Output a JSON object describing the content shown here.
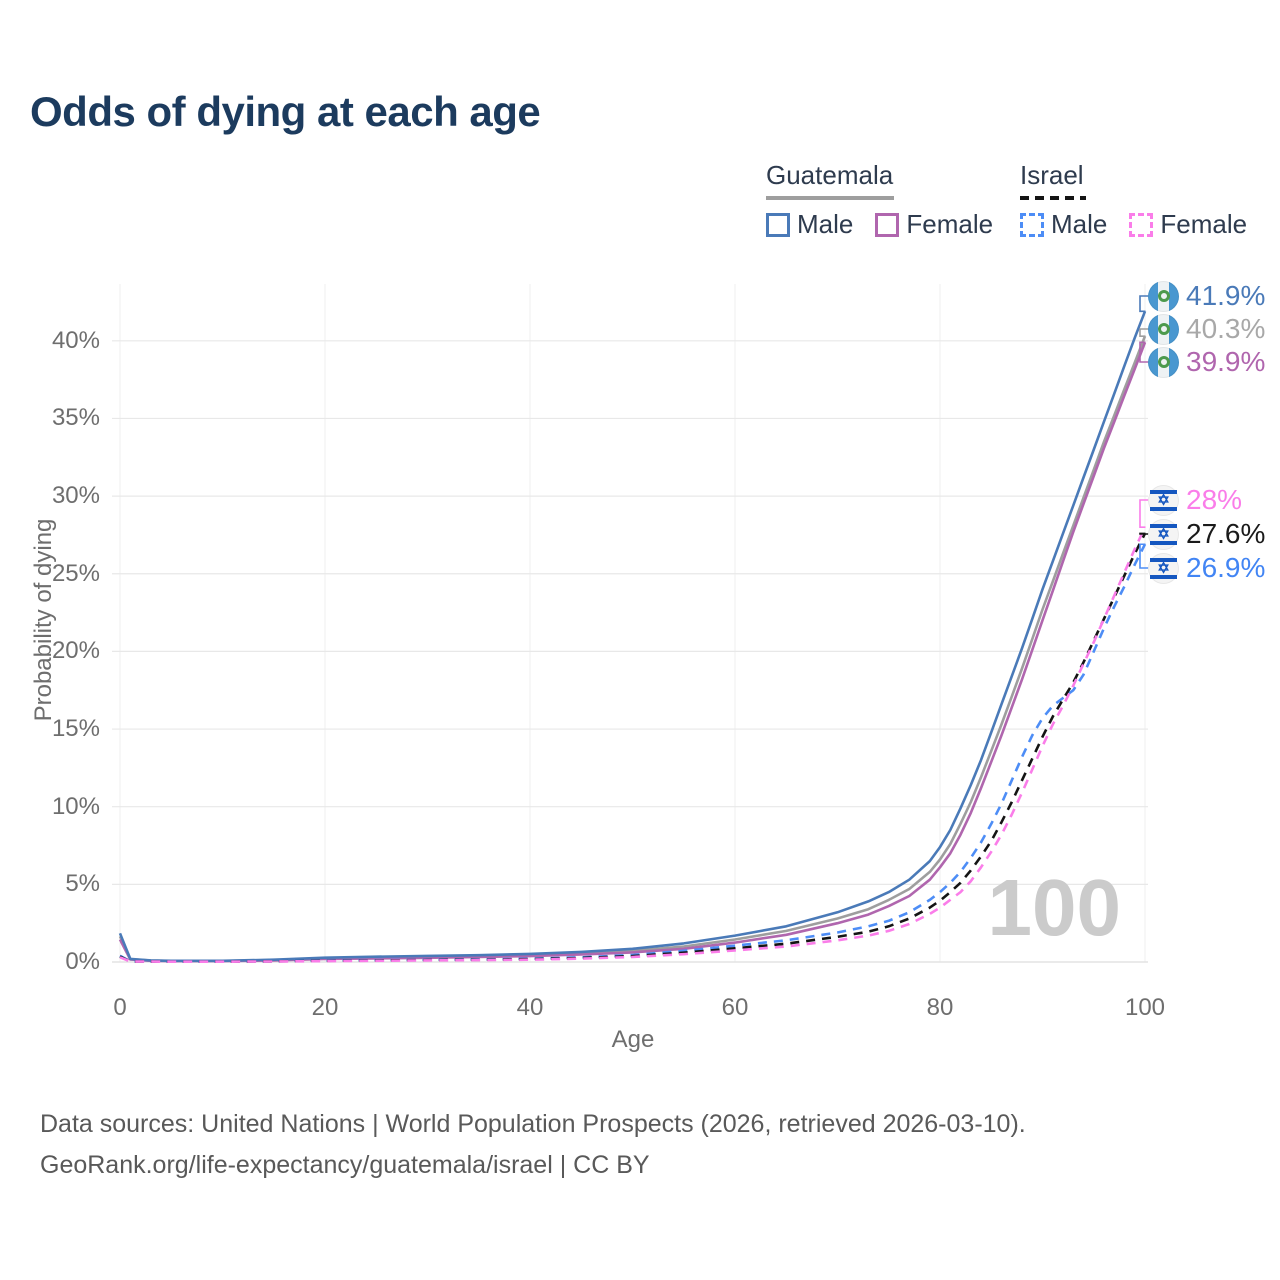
{
  "title": "Odds of dying at each age",
  "legend": {
    "guatemala": {
      "title": "Guatemala",
      "male": "Male",
      "female": "Female",
      "line_color": "#9e9e9e",
      "male_color": "#4a7ab8",
      "female_color": "#b066ae",
      "style": "solid"
    },
    "israel": {
      "title": "Israel",
      "male": "Male",
      "female": "Female",
      "line_color": "#141414",
      "male_color": "#4d8df6",
      "female_color": "#fa7de9",
      "style": "dashed"
    }
  },
  "watermark_age": "100",
  "footer": {
    "line1": "Data sources: United Nations | World Population Prospects (2026, retrieved 2026-03-10).",
    "line2": "GeoRank.org/life-expectancy/guatemala/israel | CC BY"
  },
  "flags": {
    "guatemala": {
      "blue": "#4997d0",
      "white": "#eef2f4",
      "emblem": "#4d9a4d"
    },
    "israel": {
      "blue": "#1557c0",
      "white": "#f4f4f4"
    }
  },
  "chart_data": {
    "type": "line",
    "title": "Odds of dying at each age",
    "xlabel": "Age",
    "ylabel": "Probability of dying",
    "x_ticks": [
      0,
      20,
      40,
      60,
      80,
      100
    ],
    "y_ticks": [
      "0%",
      "5%",
      "10%",
      "15%",
      "20%",
      "25%",
      "30%",
      "35%",
      "40%"
    ],
    "xlim": [
      0,
      100
    ],
    "ylim": [
      "0%",
      "43%"
    ],
    "grid": true,
    "legend_position": "top-right",
    "annotation": "100",
    "series": [
      {
        "id": "guatemala-male",
        "name": "Guatemala Male",
        "color": "#4a7ab8",
        "dashed": false,
        "flag": "guatemala",
        "end_label": "41.9%",
        "end_value": 41.9,
        "label_color": "#4a7ab8",
        "points": [
          [
            0,
            1.85
          ],
          [
            1,
            0.2
          ],
          [
            3,
            0.1
          ],
          [
            5,
            0.08
          ],
          [
            10,
            0.08
          ],
          [
            15,
            0.15
          ],
          [
            20,
            0.28
          ],
          [
            25,
            0.34
          ],
          [
            30,
            0.39
          ],
          [
            35,
            0.44
          ],
          [
            40,
            0.52
          ],
          [
            45,
            0.65
          ],
          [
            50,
            0.85
          ],
          [
            55,
            1.2
          ],
          [
            60,
            1.7
          ],
          [
            65,
            2.3
          ],
          [
            70,
            3.2
          ],
          [
            73,
            3.9
          ],
          [
            75,
            4.5
          ],
          [
            77,
            5.3
          ],
          [
            79,
            6.5
          ],
          [
            80,
            7.4
          ],
          [
            81,
            8.5
          ],
          [
            82,
            9.9
          ],
          [
            83,
            11.4
          ],
          [
            84,
            13.0
          ],
          [
            85,
            14.8
          ],
          [
            86,
            16.6
          ],
          [
            87,
            18.4
          ],
          [
            88,
            20.2
          ],
          [
            89,
            22.1
          ],
          [
            90,
            24.0
          ],
          [
            91,
            25.8
          ],
          [
            92,
            27.6
          ],
          [
            93,
            29.4
          ],
          [
            94,
            31.2
          ],
          [
            95,
            33.0
          ],
          [
            96,
            34.8
          ],
          [
            97,
            36.6
          ],
          [
            98,
            38.4
          ],
          [
            99,
            40.2
          ],
          [
            100,
            41.9
          ]
        ]
      },
      {
        "id": "guatemala-all",
        "name": "Guatemala (both sexes)",
        "color": "#9e9e9e",
        "dashed": false,
        "flag": "guatemala",
        "end_label": "40.3%",
        "end_value": 40.3,
        "label_color": "#a8a8a8",
        "points": [
          [
            0,
            1.65
          ],
          [
            1,
            0.18
          ],
          [
            3,
            0.09
          ],
          [
            5,
            0.07
          ],
          [
            10,
            0.07
          ],
          [
            15,
            0.12
          ],
          [
            20,
            0.23
          ],
          [
            25,
            0.28
          ],
          [
            30,
            0.33
          ],
          [
            35,
            0.38
          ],
          [
            40,
            0.45
          ],
          [
            45,
            0.56
          ],
          [
            50,
            0.73
          ],
          [
            55,
            1.0
          ],
          [
            60,
            1.45
          ],
          [
            65,
            2.0
          ],
          [
            70,
            2.8
          ],
          [
            73,
            3.4
          ],
          [
            75,
            4.0
          ],
          [
            77,
            4.7
          ],
          [
            79,
            5.8
          ],
          [
            80,
            6.6
          ],
          [
            81,
            7.6
          ],
          [
            82,
            8.9
          ],
          [
            83,
            10.3
          ],
          [
            84,
            11.9
          ],
          [
            85,
            13.6
          ],
          [
            86,
            15.3
          ],
          [
            87,
            17.1
          ],
          [
            88,
            18.9
          ],
          [
            89,
            20.8
          ],
          [
            90,
            22.7
          ],
          [
            91,
            24.5
          ],
          [
            92,
            26.3
          ],
          [
            93,
            28.1
          ],
          [
            94,
            29.9
          ],
          [
            95,
            31.7
          ],
          [
            96,
            33.5
          ],
          [
            97,
            35.2
          ],
          [
            98,
            36.9
          ],
          [
            99,
            38.6
          ],
          [
            100,
            40.3
          ]
        ]
      },
      {
        "id": "guatemala-female",
        "name": "Guatemala Female",
        "color": "#b066ae",
        "dashed": false,
        "flag": "guatemala",
        "end_label": "39.9%",
        "end_value": 39.9,
        "label_color": "#b066ae",
        "points": [
          [
            0,
            1.45
          ],
          [
            1,
            0.16
          ],
          [
            3,
            0.08
          ],
          [
            5,
            0.06
          ],
          [
            10,
            0.06
          ],
          [
            15,
            0.1
          ],
          [
            20,
            0.19
          ],
          [
            25,
            0.23
          ],
          [
            30,
            0.27
          ],
          [
            35,
            0.32
          ],
          [
            40,
            0.38
          ],
          [
            45,
            0.48
          ],
          [
            50,
            0.62
          ],
          [
            55,
            0.85
          ],
          [
            60,
            1.25
          ],
          [
            65,
            1.75
          ],
          [
            70,
            2.5
          ],
          [
            73,
            3.05
          ],
          [
            75,
            3.6
          ],
          [
            77,
            4.25
          ],
          [
            79,
            5.3
          ],
          [
            80,
            6.1
          ],
          [
            81,
            7.0
          ],
          [
            82,
            8.2
          ],
          [
            83,
            9.6
          ],
          [
            84,
            11.2
          ],
          [
            85,
            12.9
          ],
          [
            86,
            14.6
          ],
          [
            87,
            16.4
          ],
          [
            88,
            18.2
          ],
          [
            89,
            20.1
          ],
          [
            90,
            22.0
          ],
          [
            91,
            23.9
          ],
          [
            92,
            25.8
          ],
          [
            93,
            27.7
          ],
          [
            94,
            29.5
          ],
          [
            95,
            31.3
          ],
          [
            96,
            33.1
          ],
          [
            97,
            34.8
          ],
          [
            98,
            36.5
          ],
          [
            99,
            38.2
          ],
          [
            100,
            39.9
          ]
        ]
      },
      {
        "id": "israel-female",
        "name": "Israel Female",
        "color": "#fa7de9",
        "dashed": true,
        "flag": "israel",
        "end_label": "28%",
        "end_value": 28.0,
        "label_color": "#fa7de9",
        "points": [
          [
            0,
            0.3
          ],
          [
            1,
            0.03
          ],
          [
            5,
            0.02
          ],
          [
            10,
            0.02
          ],
          [
            15,
            0.03
          ],
          [
            20,
            0.06
          ],
          [
            25,
            0.08
          ],
          [
            30,
            0.1
          ],
          [
            35,
            0.12
          ],
          [
            40,
            0.15
          ],
          [
            45,
            0.22
          ],
          [
            50,
            0.32
          ],
          [
            55,
            0.5
          ],
          [
            60,
            0.75
          ],
          [
            65,
            1.0
          ],
          [
            70,
            1.4
          ],
          [
            73,
            1.7
          ],
          [
            75,
            2.0
          ],
          [
            77,
            2.45
          ],
          [
            79,
            3.1
          ],
          [
            80,
            3.5
          ],
          [
            82,
            4.5
          ],
          [
            83,
            5.2
          ],
          [
            84,
            6.1
          ],
          [
            85,
            7.1
          ],
          [
            86,
            8.2
          ],
          [
            87,
            9.5
          ],
          [
            88,
            10.9
          ],
          [
            89,
            12.4
          ],
          [
            90,
            13.9
          ],
          [
            91,
            15.3
          ],
          [
            92,
            16.5
          ],
          [
            93,
            17.8
          ],
          [
            94,
            19.2
          ],
          [
            95,
            20.6
          ],
          [
            96,
            22.1
          ],
          [
            97,
            23.6
          ],
          [
            98,
            25.1
          ],
          [
            99,
            26.6
          ],
          [
            100,
            28.0
          ]
        ]
      },
      {
        "id": "israel-all",
        "name": "Israel (both sexes)",
        "color": "#141414",
        "dashed": true,
        "flag": "israel",
        "end_label": "27.6%",
        "end_value": 27.6,
        "label_color": "#1a1a1a",
        "points": [
          [
            0,
            0.35
          ],
          [
            1,
            0.03
          ],
          [
            5,
            0.02
          ],
          [
            10,
            0.02
          ],
          [
            15,
            0.04
          ],
          [
            20,
            0.08
          ],
          [
            25,
            0.1
          ],
          [
            30,
            0.12
          ],
          [
            35,
            0.14
          ],
          [
            40,
            0.18
          ],
          [
            45,
            0.26
          ],
          [
            50,
            0.38
          ],
          [
            55,
            0.6
          ],
          [
            60,
            0.88
          ],
          [
            65,
            1.18
          ],
          [
            70,
            1.62
          ],
          [
            73,
            1.95
          ],
          [
            75,
            2.3
          ],
          [
            77,
            2.8
          ],
          [
            79,
            3.5
          ],
          [
            80,
            3.95
          ],
          [
            81,
            4.5
          ],
          [
            82,
            5.1
          ],
          [
            83,
            5.9
          ],
          [
            84,
            6.8
          ],
          [
            85,
            7.8
          ],
          [
            86,
            9.0
          ],
          [
            87,
            10.3
          ],
          [
            88,
            11.7
          ],
          [
            89,
            13.1
          ],
          [
            90,
            14.5
          ],
          [
            91,
            15.8
          ],
          [
            92,
            16.9
          ],
          [
            93,
            18.0
          ],
          [
            94,
            19.3
          ],
          [
            95,
            20.7
          ],
          [
            96,
            22.1
          ],
          [
            97,
            23.5
          ],
          [
            98,
            24.9
          ],
          [
            99,
            26.3
          ],
          [
            100,
            27.6
          ]
        ]
      },
      {
        "id": "israel-male",
        "name": "Israel Male",
        "color": "#4d8df6",
        "dashed": true,
        "flag": "israel",
        "end_label": "26.9%",
        "end_value": 26.9,
        "label_color": "#4285f4",
        "points": [
          [
            0,
            0.4
          ],
          [
            1,
            0.04
          ],
          [
            5,
            0.02
          ],
          [
            10,
            0.02
          ],
          [
            15,
            0.05
          ],
          [
            20,
            0.1
          ],
          [
            25,
            0.12
          ],
          [
            30,
            0.14
          ],
          [
            35,
            0.17
          ],
          [
            40,
            0.21
          ],
          [
            45,
            0.3
          ],
          [
            50,
            0.45
          ],
          [
            55,
            0.72
          ],
          [
            60,
            1.05
          ],
          [
            65,
            1.4
          ],
          [
            70,
            1.9
          ],
          [
            73,
            2.3
          ],
          [
            75,
            2.65
          ],
          [
            77,
            3.2
          ],
          [
            79,
            4.0
          ],
          [
            80,
            4.5
          ],
          [
            81,
            5.1
          ],
          [
            82,
            5.8
          ],
          [
            83,
            6.7
          ],
          [
            84,
            7.7
          ],
          [
            85,
            8.9
          ],
          [
            86,
            10.2
          ],
          [
            87,
            11.7
          ],
          [
            88,
            13.2
          ],
          [
            89,
            14.6
          ],
          [
            90,
            15.7
          ],
          [
            91,
            16.5
          ],
          [
            92,
            17.0
          ],
          [
            93,
            17.5
          ],
          [
            94,
            18.5
          ],
          [
            95,
            20.0
          ],
          [
            96,
            21.5
          ],
          [
            97,
            22.9
          ],
          [
            98,
            24.2
          ],
          [
            99,
            25.6
          ],
          [
            100,
            26.9
          ]
        ]
      }
    ]
  }
}
